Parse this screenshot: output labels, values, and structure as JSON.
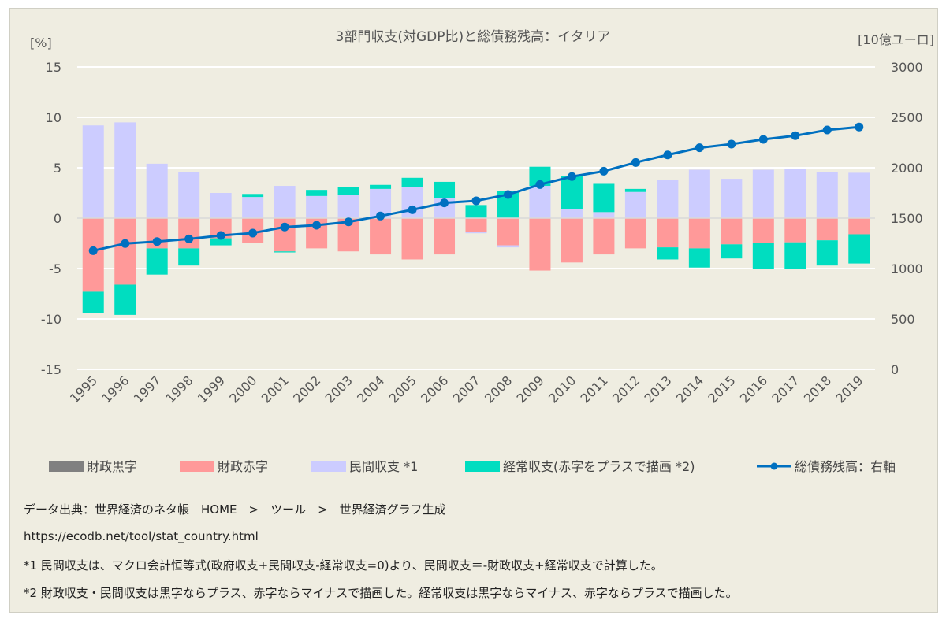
{
  "chart_data": {
    "type": "bar",
    "title": "3部門収支(対GDP比)と総債務残高：イタリア",
    "ylabel": "[%]",
    "y2label": "[10億ユーロ]",
    "ylim": [
      -15,
      15
    ],
    "yticks": [
      15,
      10,
      5,
      0,
      -5,
      -10,
      -15
    ],
    "y2lim": [
      0,
      3000
    ],
    "y2ticks": [
      3000,
      2500,
      2000,
      1500,
      1000,
      500,
      0
    ],
    "grid": true,
    "legend_position": "bottom",
    "stacked": true,
    "categories": [
      "1995",
      "1996",
      "1997",
      "1998",
      "1999",
      "2000",
      "2001",
      "2002",
      "2003",
      "2004",
      "2005",
      "2006",
      "2007",
      "2008",
      "2009",
      "2010",
      "2011",
      "2012",
      "2013",
      "2014",
      "2015",
      "2016",
      "2017",
      "2018",
      "2019"
    ],
    "series": [
      {
        "name": "財政黒字",
        "type": "bar",
        "color": "#808080",
        "values": [
          0,
          0,
          0,
          0,
          0,
          0,
          0,
          0,
          0,
          0,
          0,
          0,
          0,
          0,
          0,
          0,
          0,
          0,
          0,
          0,
          0,
          0,
          0,
          0,
          0
        ]
      },
      {
        "name": "財政赤字",
        "type": "bar",
        "color": "#ff9999",
        "values": [
          -7.3,
          -6.6,
          -3.0,
          -3.0,
          -2.0,
          -2.5,
          -3.3,
          -3.0,
          -3.3,
          -3.6,
          -4.1,
          -3.6,
          -1.4,
          -2.7,
          -5.2,
          -4.4,
          -3.6,
          -3.0,
          -2.9,
          -3.0,
          -2.6,
          -2.5,
          -2.4,
          -2.2,
          -1.6
        ]
      },
      {
        "name": "民間収支 *1",
        "type": "bar",
        "color": "#ccccff",
        "values": [
          9.2,
          9.5,
          5.4,
          4.6,
          2.5,
          2.1,
          3.2,
          2.2,
          2.3,
          2.9,
          3.1,
          2.0,
          -0.1,
          -0.2,
          3.2,
          0.9,
          0.6,
          2.6,
          3.8,
          4.8,
          3.9,
          4.8,
          4.9,
          4.6,
          4.5
        ]
      },
      {
        "name": "経常収支(赤字をプラスで描画 *2)",
        "type": "bar",
        "color": "#00ddc0",
        "values": [
          -2.1,
          -3.0,
          -2.6,
          -1.7,
          -0.7,
          0.3,
          -0.1,
          0.6,
          0.8,
          0.4,
          0.9,
          1.6,
          1.3,
          2.7,
          1.9,
          3.3,
          2.8,
          0.3,
          -1.2,
          -1.9,
          -1.4,
          -2.5,
          -2.6,
          -2.5,
          -2.9
        ]
      },
      {
        "name": "総債務残高：右軸",
        "type": "line",
        "axis": "right",
        "color": "#0070c0",
        "values": [
          1177,
          1248,
          1268,
          1294,
          1328,
          1352,
          1412,
          1430,
          1463,
          1521,
          1583,
          1651,
          1672,
          1734,
          1833,
          1912,
          1966,
          2052,
          2127,
          2198,
          2234,
          2281,
          2318,
          2375,
          2404
        ]
      }
    ]
  },
  "footer": {
    "source": "データ出典：世界経済のネタ帳　HOME　>　ツール　>　世界経済グラフ生成",
    "url": "https://ecodb.net/tool/stat_country.html",
    "note1": "*1 民間収支は、マクロ会計恒等式(政府収支+民間収支-経常収支=0)より、民間収支＝-財政収支+経常収支で計算した。",
    "note2": "*2 財政収支・民間収支は黒字ならプラス、赤字ならマイナスで描画した。経常収支は黒字ならマイナス、赤字ならプラスで描画した。"
  }
}
